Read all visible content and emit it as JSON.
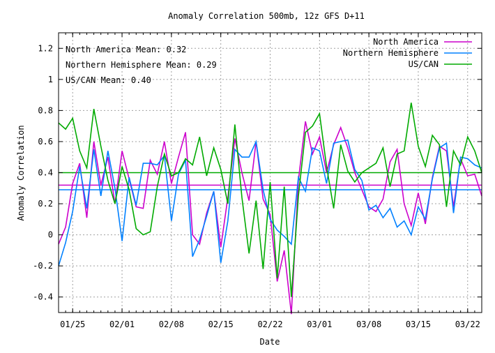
{
  "chart_data": {
    "type": "line",
    "title": "Anomaly Correlation 500mb, 12z GFS  D+11",
    "xlabel": "Date",
    "ylabel": "Anomaly Correlation",
    "x_start": "2010-01-23",
    "x_end": "2010-03-24",
    "xticks": [
      {
        "x": "2010-01-25",
        "label": "01/25"
      },
      {
        "x": "2010-02-01",
        "label": "02/01"
      },
      {
        "x": "2010-02-08",
        "label": "02/08"
      },
      {
        "x": "2010-02-15",
        "label": "02/15"
      },
      {
        "x": "2010-02-22",
        "label": "02/22"
      },
      {
        "x": "2010-03-01",
        "label": "03/01"
      },
      {
        "x": "2010-03-08",
        "label": "03/08"
      },
      {
        "x": "2010-03-15",
        "label": "03/15"
      },
      {
        "x": "2010-03-22",
        "label": "03/22"
      }
    ],
    "ylim": [
      -0.5,
      1.3
    ],
    "yticks": [
      {
        "v": -0.4,
        "label": "-0.4"
      },
      {
        "v": -0.2,
        "label": "-0.2"
      },
      {
        "v": 0,
        "label": "0"
      },
      {
        "v": 0.2,
        "label": "0.2"
      },
      {
        "v": 0.4,
        "label": "0.4"
      },
      {
        "v": 0.6,
        "label": "0.6"
      },
      {
        "v": 0.8,
        "label": "0.8"
      },
      {
        "v": 1,
        "label": "1"
      },
      {
        "v": 1.2,
        "label": "1.2"
      }
    ],
    "grid": true,
    "legend_position": "top-right",
    "annotations": [
      "North America Mean: 0.32",
      "Northern Hemisphere Mean: 0.29",
      "US/CAN Mean: 0.40"
    ],
    "x_dates": [
      "2010-01-23",
      "2010-01-24",
      "2010-01-25",
      "2010-01-26",
      "2010-01-27",
      "2010-01-28",
      "2010-01-29",
      "2010-01-30",
      "2010-01-31",
      "2010-02-01",
      "2010-02-02",
      "2010-02-03",
      "2010-02-04",
      "2010-02-05",
      "2010-02-06",
      "2010-02-07",
      "2010-02-08",
      "2010-02-09",
      "2010-02-10",
      "2010-02-11",
      "2010-02-12",
      "2010-02-13",
      "2010-02-14",
      "2010-02-15",
      "2010-02-16",
      "2010-02-17",
      "2010-02-18",
      "2010-02-19",
      "2010-02-20",
      "2010-02-21",
      "2010-02-22",
      "2010-02-23",
      "2010-02-24",
      "2010-02-25",
      "2010-02-26",
      "2010-02-27",
      "2010-02-28",
      "2010-03-01",
      "2010-03-02",
      "2010-03-03",
      "2010-03-04",
      "2010-03-05",
      "2010-03-06",
      "2010-03-07",
      "2010-03-08",
      "2010-03-09",
      "2010-03-10",
      "2010-03-11",
      "2010-03-12",
      "2010-03-13",
      "2010-03-14",
      "2010-03-15",
      "2010-03-16",
      "2010-03-17",
      "2010-03-18",
      "2010-03-19",
      "2010-03-20",
      "2010-03-21",
      "2010-03-22",
      "2010-03-23",
      "2010-03-24"
    ],
    "series": [
      {
        "name": "North America",
        "color": "#cc00cc",
        "mean": 0.32,
        "values": [
          -0.06,
          0.05,
          0.33,
          0.46,
          0.11,
          0.6,
          0.32,
          0.5,
          0.2,
          0.54,
          0.36,
          0.18,
          0.17,
          0.48,
          0.39,
          0.6,
          0.33,
          0.5,
          0.66,
          0.0,
          -0.06,
          0.14,
          0.28,
          -0.08,
          0.24,
          0.62,
          0.4,
          0.22,
          0.6,
          0.23,
          0.13,
          -0.3,
          -0.1,
          -0.51,
          0.35,
          0.73,
          0.52,
          0.63,
          0.4,
          0.58,
          0.69,
          0.56,
          0.4,
          0.29,
          0.18,
          0.15,
          0.23,
          0.47,
          0.55,
          0.2,
          0.06,
          0.27,
          0.07,
          0.37,
          0.57,
          0.54,
          0.18,
          0.49,
          0.38,
          0.39,
          0.25
        ]
      },
      {
        "name": "Northern Hemisphere",
        "color": "#0080ff",
        "mean": 0.29,
        "values": [
          -0.2,
          -0.05,
          0.15,
          0.44,
          0.17,
          0.55,
          0.25,
          0.54,
          0.3,
          -0.04,
          0.37,
          0.19,
          0.46,
          0.46,
          0.45,
          0.51,
          0.09,
          0.39,
          0.48,
          -0.14,
          -0.03,
          0.12,
          0.28,
          -0.18,
          0.09,
          0.55,
          0.5,
          0.5,
          0.6,
          0.29,
          0.1,
          0.03,
          -0.01,
          -0.06,
          0.37,
          0.28,
          0.56,
          0.54,
          0.33,
          0.59,
          0.6,
          0.61,
          0.42,
          0.35,
          0.16,
          0.19,
          0.11,
          0.17,
          0.05,
          0.09,
          0.0,
          0.18,
          0.1,
          0.36,
          0.56,
          0.59,
          0.14,
          0.5,
          0.49,
          0.45,
          0.43
        ]
      },
      {
        "name": "US/CAN",
        "color": "#00aa00",
        "mean": 0.4,
        "values": [
          0.72,
          0.68,
          0.75,
          0.54,
          0.43,
          0.81,
          0.57,
          0.35,
          0.2,
          0.44,
          0.29,
          0.04,
          0.0,
          0.02,
          0.31,
          0.52,
          0.38,
          0.4,
          0.49,
          0.45,
          0.63,
          0.38,
          0.56,
          0.42,
          0.2,
          0.71,
          0.24,
          -0.12,
          0.22,
          -0.22,
          0.34,
          -0.28,
          0.31,
          -0.4,
          0.25,
          0.66,
          0.7,
          0.78,
          0.44,
          0.17,
          0.58,
          0.41,
          0.34,
          0.4,
          0.43,
          0.46,
          0.56,
          0.31,
          0.52,
          0.54,
          0.85,
          0.57,
          0.44,
          0.64,
          0.58,
          0.18,
          0.54,
          0.45,
          0.63,
          0.54,
          0.4
        ]
      }
    ]
  }
}
